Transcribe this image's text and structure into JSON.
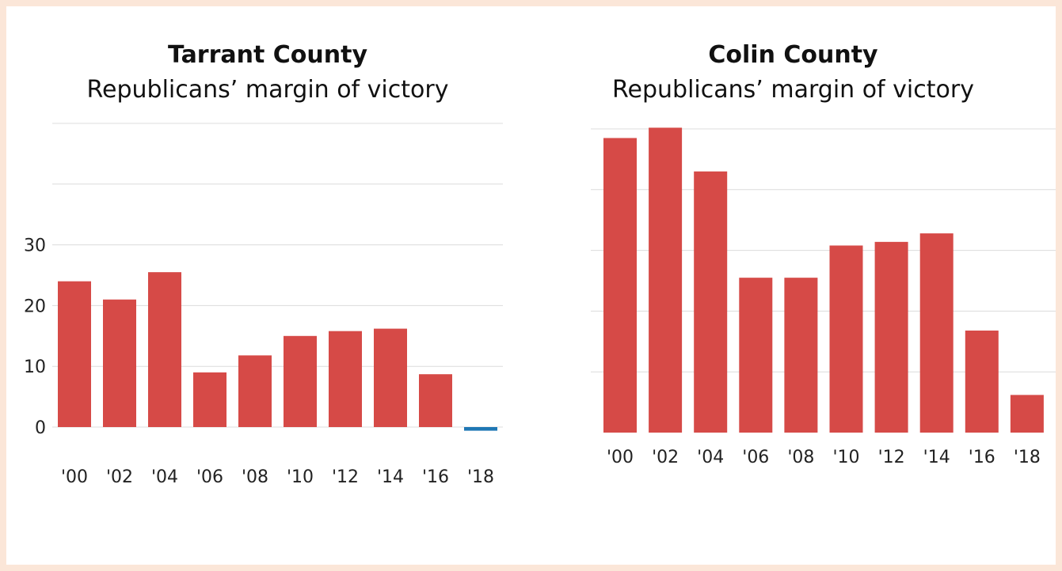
{
  "chart_data": [
    {
      "type": "bar",
      "title": "Tarrant County",
      "subtitle": "Republicans’ margin of victory",
      "categories": [
        "'00",
        "'02",
        "'04",
        "'06",
        "'08",
        "'10",
        "'12",
        "'14",
        "'16",
        "'18"
      ],
      "values": [
        24,
        21,
        25.5,
        9,
        11.8,
        15,
        15.8,
        16.2,
        8.7,
        -0.6
      ],
      "ylim": [
        0,
        50
      ],
      "yticks": [
        0,
        10,
        20,
        30
      ],
      "grid_values": [
        0,
        10,
        20,
        30,
        40,
        50
      ],
      "grid": true,
      "colors": {
        "positive": "#d64a47",
        "negative": "#1f77b4"
      }
    },
    {
      "type": "bar",
      "title": "Colin County",
      "subtitle": "Republicans’ margin of victory",
      "categories": [
        "'00",
        "'02",
        "'04",
        "'06",
        "'08",
        "'10",
        "'12",
        "'14",
        "'16",
        "'18"
      ],
      "values": [
        48.5,
        50.2,
        43,
        25.5,
        25.5,
        30.8,
        31.4,
        32.8,
        16.8,
        6.2
      ],
      "ylim": [
        0,
        50
      ],
      "yticks": [],
      "grid_values": [
        10,
        20,
        30,
        40,
        50
      ],
      "grid": true,
      "colors": {
        "positive": "#d64a47",
        "negative": "#1f77b4"
      }
    }
  ]
}
